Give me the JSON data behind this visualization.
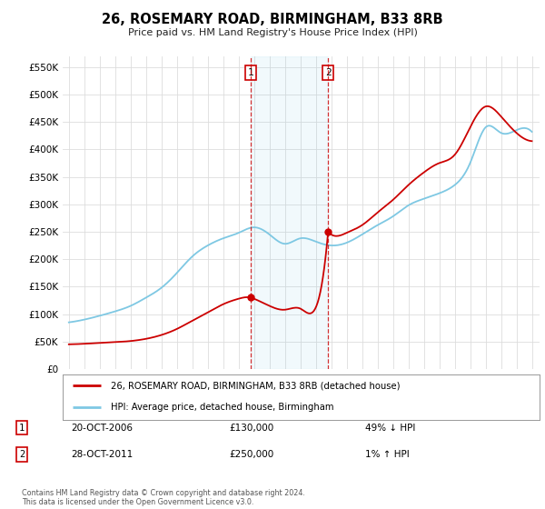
{
  "title": "26, ROSEMARY ROAD, BIRMINGHAM, B33 8RB",
  "subtitle": "Price paid vs. HM Land Registry's House Price Index (HPI)",
  "ylim": [
    0,
    570000
  ],
  "yticks": [
    0,
    50000,
    100000,
    150000,
    200000,
    250000,
    300000,
    350000,
    400000,
    450000,
    500000,
    550000
  ],
  "ytick_labels": [
    "£0",
    "£50K",
    "£100K",
    "£150K",
    "£200K",
    "£250K",
    "£300K",
    "£350K",
    "£400K",
    "£450K",
    "£500K",
    "£550K"
  ],
  "sale1_date": 2006.8,
  "sale1_price": 130000,
  "sale2_date": 2011.8,
  "sale2_price": 250000,
  "hpi_color": "#7ec8e3",
  "red_color": "#cc0000",
  "annotation1": [
    "1",
    "20-OCT-2006",
    "£130,000",
    "49% ↓ HPI"
  ],
  "annotation2": [
    "2",
    "28-OCT-2011",
    "£250,000",
    "1% ↑ HPI"
  ],
  "legend_line1": "26, ROSEMARY ROAD, BIRMINGHAM, B33 8RB (detached house)",
  "legend_line2": "HPI: Average price, detached house, Birmingham",
  "footnote": "Contains HM Land Registry data © Crown copyright and database right 2024.\nThis data is licensed under the Open Government Licence v3.0.",
  "bg_color": "#ffffff",
  "grid_color": "#dddddd"
}
